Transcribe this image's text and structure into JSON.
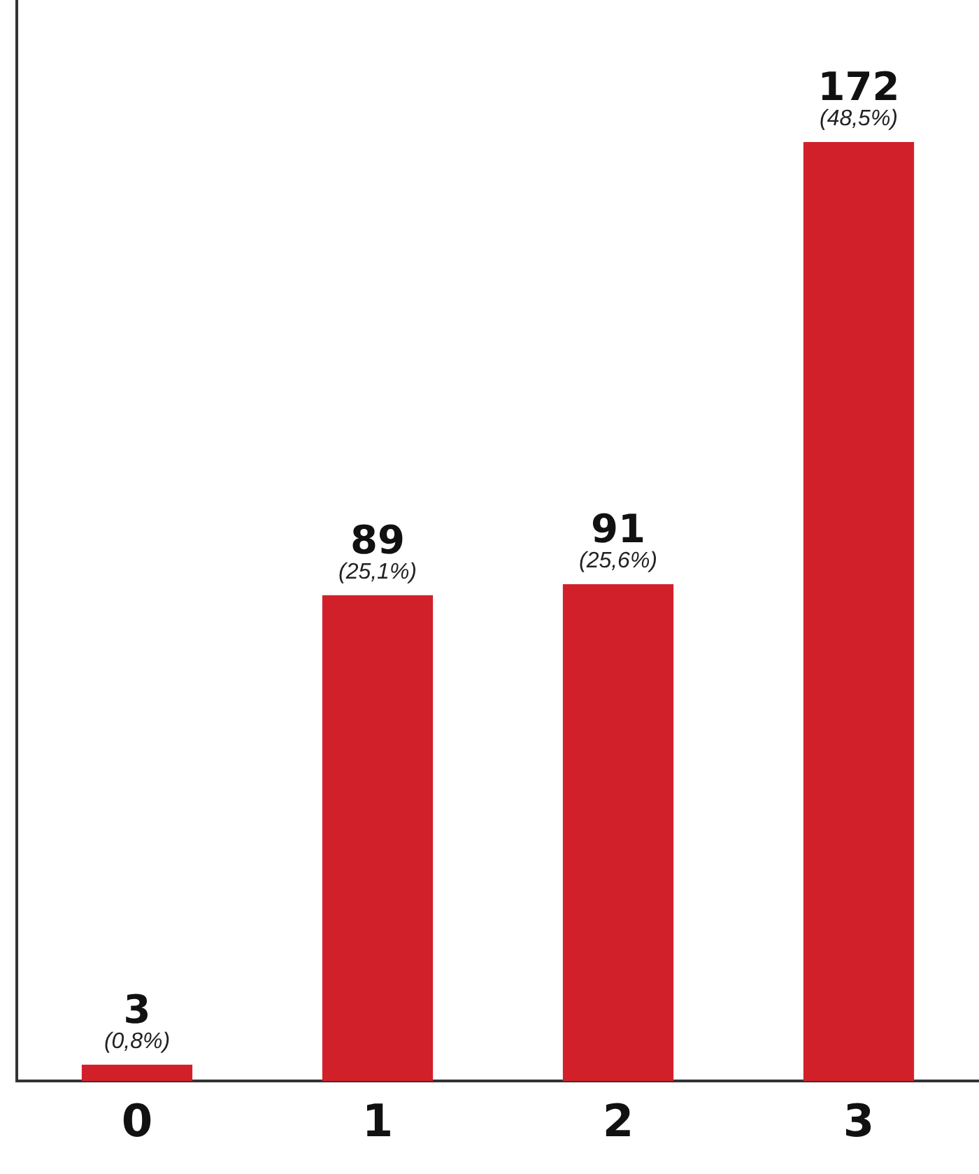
{
  "chart_data": {
    "type": "bar",
    "categories": [
      "0",
      "1",
      "2",
      "3"
    ],
    "values": [
      3,
      89,
      91,
      172
    ],
    "color": "#d2202a",
    "ylim": [
      0,
      198
    ],
    "tick_labels": "x",
    "grid": false,
    "legend": false,
    "data_labels": true,
    "annotations": [
      {
        "text": "(0,8%)",
        "x": "0",
        "y": 3
      },
      {
        "text": "(25,1%)",
        "x": "1",
        "y": 89
      },
      {
        "text": "(25,6%)",
        "x": "2",
        "y": 91
      },
      {
        "text": "(48,5%)",
        "x": "3",
        "y": 172
      }
    ]
  }
}
